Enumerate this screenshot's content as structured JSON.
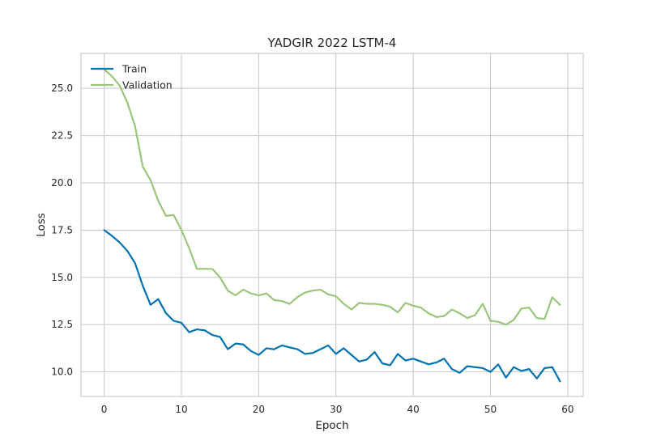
{
  "chart_data": {
    "type": "line",
    "title": "YADGIR 2022 LSTM-4",
    "xlabel": "Epoch",
    "ylabel": "Loss",
    "xlim": [
      -3,
      62
    ],
    "ylim": [
      8.7,
      26.85
    ],
    "xticks": [
      0,
      10,
      20,
      30,
      40,
      50,
      60
    ],
    "yticks": [
      10.0,
      12.5,
      15.0,
      17.5,
      20.0,
      22.5,
      25.0
    ],
    "xtick_labels": [
      "0",
      "10",
      "20",
      "30",
      "40",
      "50",
      "60"
    ],
    "ytick_labels": [
      "10.0",
      "12.5",
      "15.0",
      "17.5",
      "20.0",
      "22.5",
      "25.0"
    ],
    "grid": true,
    "legend_position": "top-left",
    "x": [
      0,
      1,
      2,
      3,
      4,
      5,
      6,
      7,
      8,
      9,
      10,
      11,
      12,
      13,
      14,
      15,
      16,
      17,
      18,
      19,
      20,
      21,
      22,
      23,
      24,
      25,
      26,
      27,
      28,
      29,
      30,
      31,
      32,
      33,
      34,
      35,
      36,
      37,
      38,
      39,
      40,
      41,
      42,
      43,
      44,
      45,
      46,
      47,
      48,
      49,
      50,
      51,
      52,
      53,
      54,
      55,
      56,
      57,
      58,
      59
    ],
    "series": [
      {
        "name": "Train",
        "color": "#0072b2",
        "values": [
          17.5,
          17.2,
          16.85,
          16.4,
          15.75,
          14.55,
          13.55,
          13.85,
          13.1,
          12.7,
          12.6,
          12.1,
          12.25,
          12.2,
          11.95,
          11.85,
          11.2,
          11.5,
          11.45,
          11.1,
          10.9,
          11.25,
          11.2,
          11.4,
          11.3,
          11.2,
          10.95,
          11.0,
          11.2,
          11.4,
          10.95,
          11.25,
          10.9,
          10.55,
          10.65,
          11.05,
          10.45,
          10.35,
          10.95,
          10.6,
          10.7,
          10.55,
          10.4,
          10.5,
          10.7,
          10.15,
          9.95,
          10.3,
          10.25,
          10.2,
          10.0,
          10.4,
          9.7,
          10.25,
          10.05,
          10.15,
          9.65,
          10.2,
          10.25,
          9.5
        ]
      },
      {
        "name": "Validation",
        "color": "#9bc57a",
        "values": [
          26.0,
          25.65,
          25.15,
          24.25,
          23.0,
          20.85,
          20.15,
          19.05,
          18.25,
          18.3,
          17.5,
          16.55,
          15.45,
          15.45,
          15.45,
          15.0,
          14.3,
          14.05,
          14.35,
          14.15,
          14.05,
          14.15,
          13.8,
          13.75,
          13.6,
          13.95,
          14.2,
          14.3,
          14.35,
          14.1,
          14.0,
          13.6,
          13.3,
          13.65,
          13.6,
          13.6,
          13.55,
          13.45,
          13.15,
          13.65,
          13.5,
          13.4,
          13.1,
          12.9,
          12.95,
          13.3,
          13.1,
          12.85,
          13.0,
          13.6,
          12.7,
          12.65,
          12.5,
          12.75,
          13.35,
          13.4,
          12.85,
          12.8,
          13.95,
          13.55
        ]
      }
    ]
  }
}
